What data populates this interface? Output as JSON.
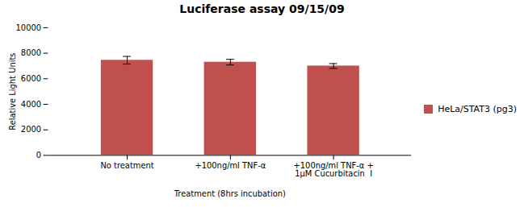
{
  "chart_data": {
    "type": "bar",
    "title": "Luciferase assay 09/15/09",
    "xlabel": "Treatment (8hrs incubation)",
    "ylabel": "Relative Light Units",
    "categories": [
      "No treatment",
      "+100ng/ml TNF-α",
      "+100ng/ml TNF-α +\n1μM Cucurbitacin  I"
    ],
    "series": [
      {
        "name": "HeLa/STAT3 (pg3)",
        "color": "#c0504d",
        "values": [
          7450,
          7300,
          7000
        ],
        "errors": [
          300,
          220,
          190
        ]
      }
    ],
    "ylim": [
      0,
      10000
    ],
    "yticks": [
      0,
      2000,
      4000,
      6000,
      8000,
      10000
    ],
    "grid": false,
    "legend": "right"
  }
}
